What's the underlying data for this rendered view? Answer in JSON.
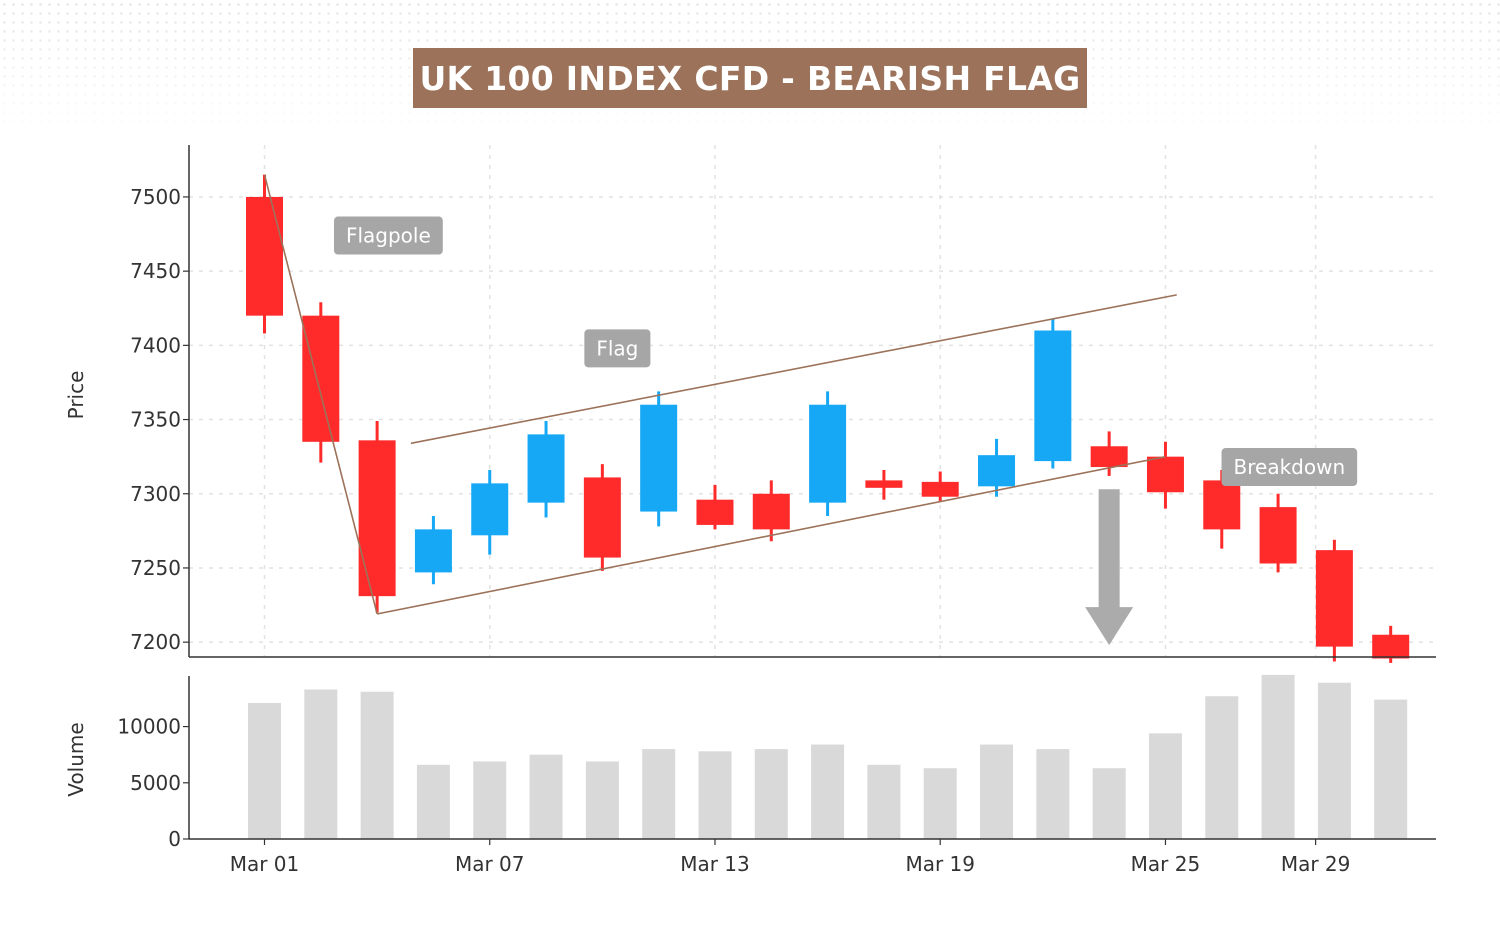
{
  "title": "UK 100 INDEX CFD - BEARISH FLAG",
  "chart_data": {
    "type": "candlestick",
    "price_axis": {
      "label": "Price",
      "ylim": [
        7190,
        7535
      ],
      "ticks": [
        7200,
        7250,
        7300,
        7350,
        7400,
        7450,
        7500
      ]
    },
    "volume_axis": {
      "label": "Volume",
      "ylim": [
        0,
        14500
      ],
      "ticks": [
        0,
        5000,
        10000
      ]
    },
    "x_ticks": [
      {
        "day": 1,
        "label": "Mar 01"
      },
      {
        "day": 7,
        "label": "Mar 07"
      },
      {
        "day": 13,
        "label": "Mar 13"
      },
      {
        "day": 19,
        "label": "Mar 19"
      },
      {
        "day": 25,
        "label": "Mar 25"
      },
      {
        "day": 29,
        "label": "Mar 29"
      }
    ],
    "grid": true,
    "colors": {
      "bearish": "#ff2b2b",
      "bullish": "#17a8f5",
      "volume": "#d9d9d9",
      "trendline": "#9c735a",
      "annotation": "#a6a6a6"
    },
    "candles": [
      {
        "day": 1.0,
        "open": 7500,
        "high": 7515,
        "low": 7408,
        "close": 7420
      },
      {
        "day": 2.5,
        "open": 7420,
        "high": 7429,
        "low": 7321,
        "close": 7335
      },
      {
        "day": 4.0,
        "open": 7336,
        "high": 7349,
        "low": 7220,
        "close": 7231
      },
      {
        "day": 5.5,
        "open": 7247,
        "high": 7285,
        "low": 7239,
        "close": 7276
      },
      {
        "day": 7.0,
        "open": 7272,
        "high": 7316,
        "low": 7259,
        "close": 7307
      },
      {
        "day": 8.5,
        "open": 7294,
        "high": 7349,
        "low": 7284,
        "close": 7340
      },
      {
        "day": 10.0,
        "open": 7311,
        "high": 7320,
        "low": 7248,
        "close": 7257
      },
      {
        "day": 11.5,
        "open": 7288,
        "high": 7369,
        "low": 7278,
        "close": 7360
      },
      {
        "day": 13.0,
        "open": 7296,
        "high": 7306,
        "low": 7276,
        "close": 7279
      },
      {
        "day": 14.5,
        "open": 7300,
        "high": 7309,
        "low": 7268,
        "close": 7276
      },
      {
        "day": 16.0,
        "open": 7294,
        "high": 7369,
        "low": 7285,
        "close": 7360
      },
      {
        "day": 17.5,
        "open": 7309,
        "high": 7316,
        "low": 7296,
        "close": 7304
      },
      {
        "day": 19.0,
        "open": 7308,
        "high": 7315,
        "low": 7295,
        "close": 7298
      },
      {
        "day": 20.5,
        "open": 7305,
        "high": 7337,
        "low": 7298,
        "close": 7326
      },
      {
        "day": 22.0,
        "open": 7322,
        "high": 7418,
        "low": 7317,
        "close": 7410
      },
      {
        "day": 23.5,
        "open": 7332,
        "high": 7342,
        "low": 7312,
        "close": 7318
      },
      {
        "day": 25.0,
        "open": 7325,
        "high": 7335,
        "low": 7290,
        "close": 7301
      },
      {
        "day": 26.5,
        "open": 7309,
        "high": 7316,
        "low": 7263,
        "close": 7276
      },
      {
        "day": 28.0,
        "open": 7291,
        "high": 7300,
        "low": 7247,
        "close": 7253
      },
      {
        "day": 29.5,
        "open": 7262,
        "high": 7269,
        "low": 7187,
        "close": 7197
      },
      {
        "day": 31.0,
        "open": 7205,
        "high": 7211,
        "low": 7186,
        "close": 7189
      }
    ],
    "volume": [
      12100,
      13300,
      13100,
      6600,
      6900,
      7500,
      6900,
      8000,
      7800,
      8000,
      8400,
      6600,
      6300,
      8400,
      8000,
      6300,
      9400,
      12700,
      14600,
      13900,
      12400
    ],
    "trendlines": [
      {
        "name": "flagpole",
        "points": [
          [
            1.0,
            7515
          ],
          [
            4.0,
            7219
          ]
        ]
      },
      {
        "name": "flag-upper",
        "points": [
          [
            4.9,
            7334
          ],
          [
            25.3,
            7434
          ]
        ]
      },
      {
        "name": "flag-lower",
        "points": [
          [
            4.0,
            7219
          ],
          [
            25.0,
            7325
          ]
        ]
      }
    ],
    "annotations": [
      {
        "text": "Flagpole",
        "day": 4.3,
        "price": 7474
      },
      {
        "text": "Flag",
        "day": 10.4,
        "price": 7398
      },
      {
        "text": "Breakdown",
        "day": 28.3,
        "price": 7318
      }
    ],
    "breakdown_arrow": {
      "day": 23.5,
      "from_price": 7303,
      "to_price": 7198
    }
  }
}
